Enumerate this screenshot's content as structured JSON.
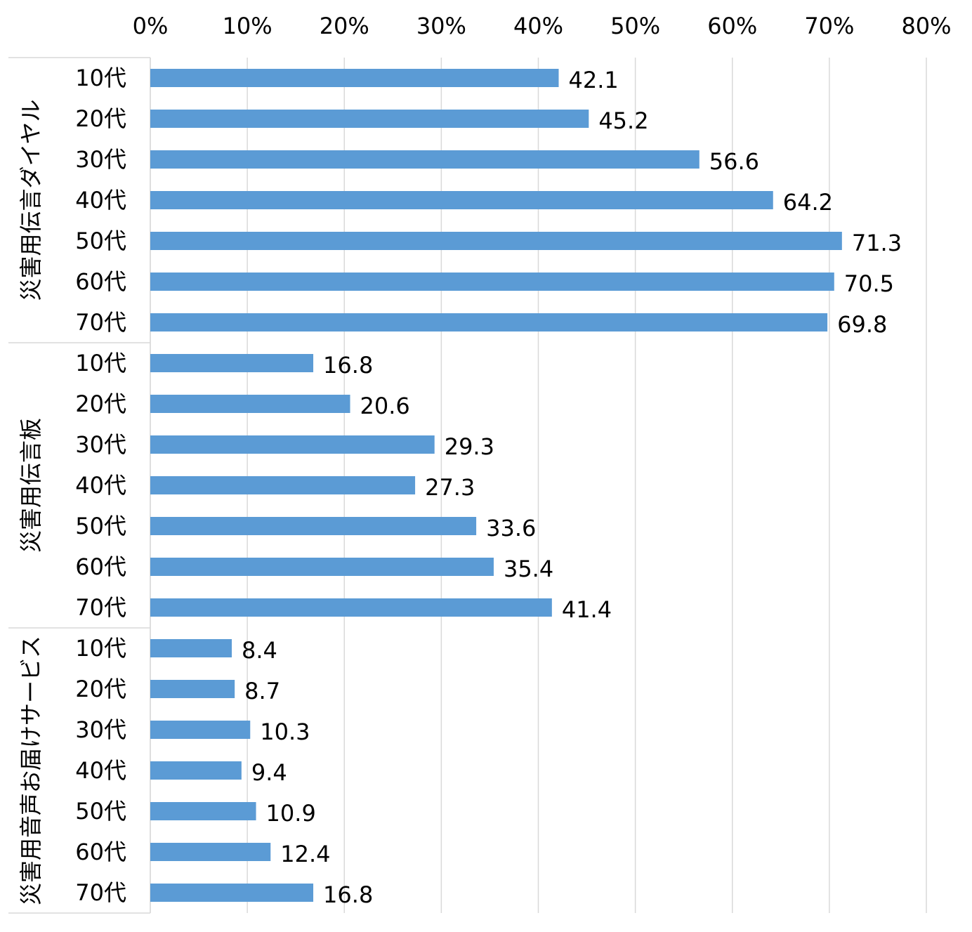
{
  "chart_data": {
    "type": "bar",
    "orientation": "horizontal",
    "x_ticks": [
      "0%",
      "10%",
      "20%",
      "30%",
      "40%",
      "50%",
      "60%",
      "70%",
      "80%"
    ],
    "xlim": [
      0,
      80
    ],
    "x_tick_step": 10,
    "grid": true,
    "bar_color": "#5b9bd5",
    "groups": [
      {
        "name": "災害用伝言ダイヤル",
        "categories": [
          "10代",
          "20代",
          "30代",
          "40代",
          "50代",
          "60代",
          "70代"
        ],
        "values": [
          42.1,
          45.2,
          56.6,
          64.2,
          71.3,
          70.5,
          69.8
        ],
        "value_labels": [
          "42.1",
          "45.2",
          "56.6",
          "64.2",
          "71.3",
          "70.5",
          "69.8"
        ]
      },
      {
        "name": "災害用伝言板",
        "categories": [
          "10代",
          "20代",
          "30代",
          "40代",
          "50代",
          "60代",
          "70代"
        ],
        "values": [
          16.8,
          20.6,
          29.3,
          27.3,
          33.6,
          35.4,
          41.4
        ],
        "value_labels": [
          "16.8",
          "20.6",
          "29.3",
          "27.3",
          "33.6",
          "35.4",
          "41.4"
        ]
      },
      {
        "name": "災害用音声お届けサービス",
        "categories": [
          "10代",
          "20代",
          "30代",
          "40代",
          "50代",
          "60代",
          "70代"
        ],
        "values": [
          8.4,
          8.7,
          10.3,
          9.4,
          10.9,
          12.4,
          16.8
        ],
        "value_labels": [
          "8.4",
          "8.7",
          "10.3",
          "9.4",
          "10.9",
          "12.4",
          "16.8"
        ]
      }
    ]
  }
}
